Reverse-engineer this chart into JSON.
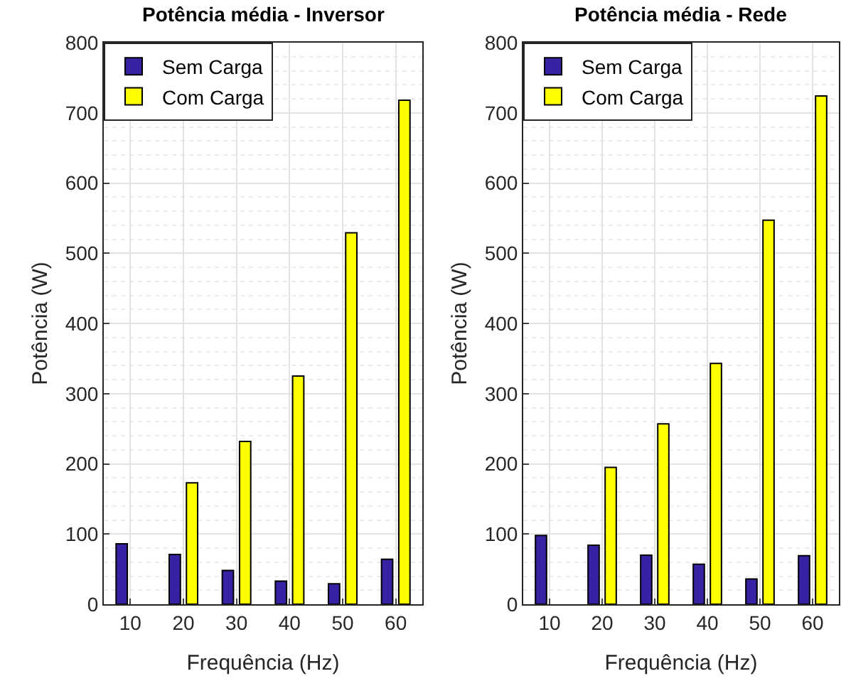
{
  "chart_data": [
    {
      "type": "bar",
      "title": "Potência média - Inversor",
      "xlabel": "Frequência (Hz)",
      "ylabel": "Potência (W)",
      "categories": [
        "10",
        "20",
        "30",
        "40",
        "50",
        "60"
      ],
      "series": [
        {
          "name": "Sem Carga",
          "color": "#3523a4",
          "values": [
            86,
            71,
            48,
            33,
            29,
            64
          ]
        },
        {
          "name": "Com Carga",
          "color": "#ffff00",
          "values": [
            null,
            173,
            232,
            325,
            529,
            718
          ]
        }
      ],
      "ylim": [
        0,
        800
      ],
      "yticks": [
        0,
        100,
        200,
        300,
        400,
        500,
        600,
        700,
        800
      ],
      "grid": true,
      "legend": "top left"
    },
    {
      "type": "bar",
      "title": "Potência média - Rede",
      "xlabel": "Frequência (Hz)",
      "ylabel": "Potência (W)",
      "categories": [
        "10",
        "20",
        "30",
        "40",
        "50",
        "60"
      ],
      "series": [
        {
          "name": "Sem Carga",
          "color": "#3523a4",
          "values": [
            98,
            84,
            70,
            57,
            36,
            69
          ]
        },
        {
          "name": "Com Carga",
          "color": "#ffff00",
          "values": [
            null,
            195,
            257,
            343,
            547,
            724
          ]
        }
      ],
      "ylim": [
        0,
        800
      ],
      "yticks": [
        0,
        100,
        200,
        300,
        400,
        500,
        600,
        700,
        800
      ],
      "grid": true,
      "legend": "top left"
    }
  ]
}
